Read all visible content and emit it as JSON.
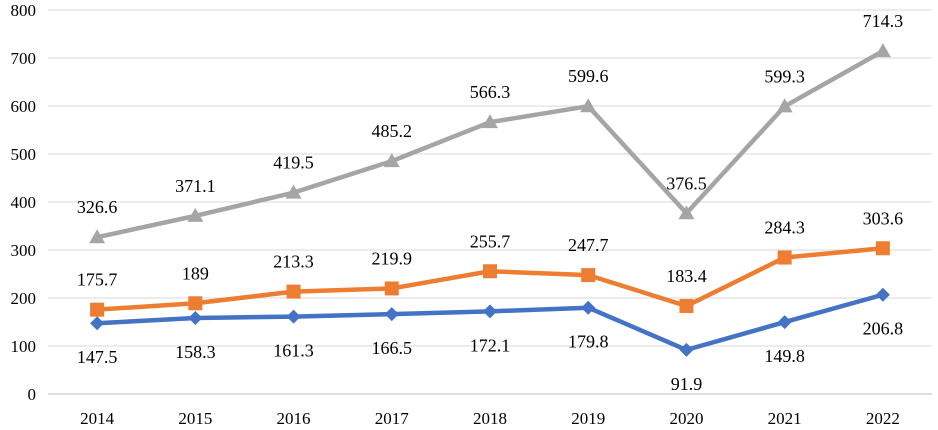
{
  "chart_data": {
    "type": "line",
    "title": "",
    "xlabel": "",
    "ylabel": "",
    "categories": [
      "2014",
      "2015",
      "2016",
      "2017",
      "2018",
      "2019",
      "2020",
      "2021",
      "2022"
    ],
    "ylim": [
      0,
      800
    ],
    "yticks": [
      0,
      100,
      200,
      300,
      400,
      500,
      600,
      700,
      800
    ],
    "grid": true,
    "legend": "none",
    "series": [
      {
        "color": "#4472C4",
        "marker": "diamond",
        "values": [
          147.5,
          158.3,
          161.3,
          166.5,
          172.1,
          179.8,
          91.9,
          149.8,
          206.8
        ],
        "labels": [
          "147.5",
          "158.3",
          "161.3",
          "166.5",
          "172.1",
          "179.8",
          "91.9",
          "149.8",
          "206.8"
        ],
        "label_position": "below"
      },
      {
        "color": "#ED7D31",
        "marker": "square",
        "values": [
          175.7,
          189,
          213.3,
          219.9,
          255.7,
          247.7,
          183.4,
          284.3,
          303.6
        ],
        "labels": [
          "175.7",
          "189",
          "213.3",
          "219.9",
          "255.7",
          "247.7",
          "183.4",
          "284.3",
          "303.6"
        ],
        "label_position": "above"
      },
      {
        "color": "#A5A5A5",
        "marker": "triangle",
        "values": [
          326.6,
          371.1,
          419.5,
          485.2,
          566.3,
          599.6,
          376.5,
          599.3,
          714.3
        ],
        "labels": [
          "326.6",
          "371.1",
          "419.5",
          "485.2",
          "566.3",
          "599.6",
          "376.5",
          "599.3",
          "714.3"
        ],
        "label_position": "above"
      }
    ]
  }
}
